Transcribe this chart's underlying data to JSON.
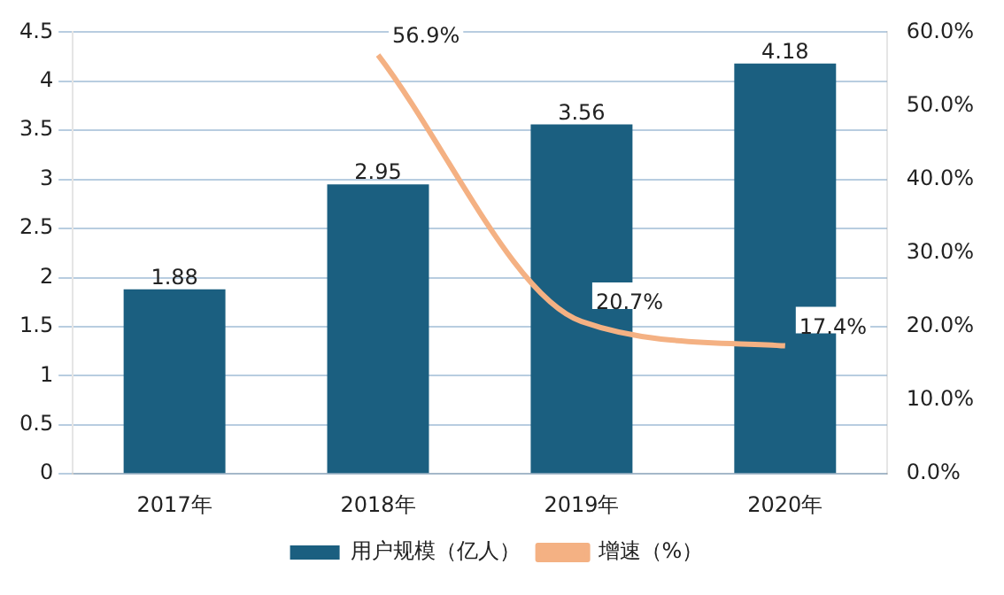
{
  "chart_data": {
    "type": "bar",
    "categories": [
      "2017年",
      "2018年",
      "2019年",
      "2020年"
    ],
    "series": [
      {
        "name": "用户规模（亿人）",
        "color": "#1b5f80",
        "values": [
          1.88,
          2.95,
          3.56,
          4.18
        ],
        "value_labels": [
          "1.88",
          "2.95",
          "3.56",
          "4.18"
        ]
      },
      {
        "name": "增速（%）",
        "type": "line",
        "axis": "y2",
        "color": "#f4b183",
        "values": [
          null,
          56.9,
          20.7,
          17.4
        ],
        "value_labels": [
          null,
          "56.9%",
          "20.7%",
          "17.4%"
        ]
      }
    ],
    "ylim": [
      0,
      4.5
    ],
    "yticks": [
      0,
      0.5,
      1,
      1.5,
      2,
      2.5,
      3,
      3.5,
      4,
      4.5
    ],
    "y2lim": [
      0,
      60
    ],
    "y2ticks": [
      {
        "value": 0,
        "label": "0.0%"
      },
      {
        "value": 10,
        "label": "10.0%"
      },
      {
        "value": 20,
        "label": "20.0%"
      },
      {
        "value": 30,
        "label": "30.0%"
      },
      {
        "value": 40,
        "label": "40.0%"
      },
      {
        "value": 50,
        "label": "50.0%"
      },
      {
        "value": 60,
        "label": "60.0%"
      }
    ],
    "grid": "y",
    "legend": "bottom",
    "marker": "none"
  }
}
